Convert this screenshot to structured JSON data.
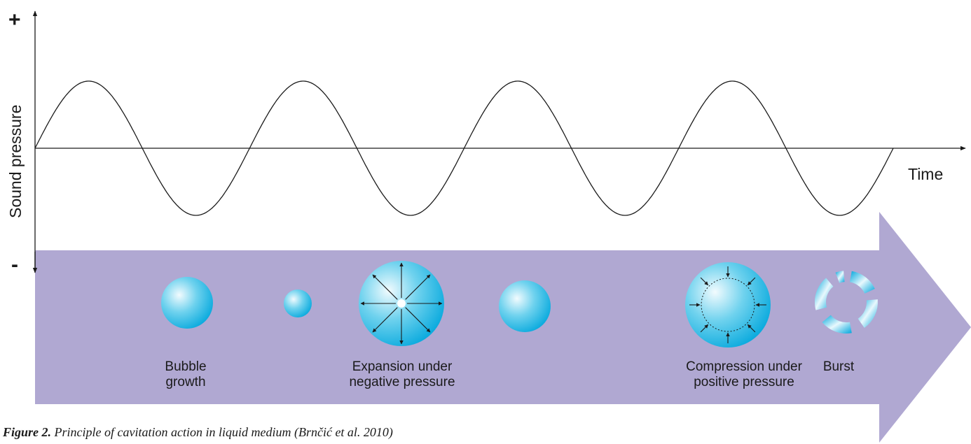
{
  "axes": {
    "y_label": "Sound pressure",
    "x_label": "Time",
    "plus_sign": "+",
    "minus_sign": "-"
  },
  "stages": [
    {
      "id": "bubble-growth",
      "label": "Bubble\ngrowth"
    },
    {
      "id": "expansion",
      "label": "Expansion under\nnegative pressure"
    },
    {
      "id": "compression",
      "label": "Compression under\npositive pressure"
    },
    {
      "id": "burst",
      "label": "Burst"
    }
  ],
  "caption": {
    "figure_label": "Figure 2.",
    "text": " Principle of cavitation action in liquid medium (Brnčić et al. 2010)"
  },
  "colors": {
    "arrow_fill": "#b0a8d2",
    "bubble_light": "#e8f8fd",
    "bubble_mid": "#6fd2ee",
    "bubble_dark": "#00a6dc",
    "line": "#1a1a1a"
  }
}
